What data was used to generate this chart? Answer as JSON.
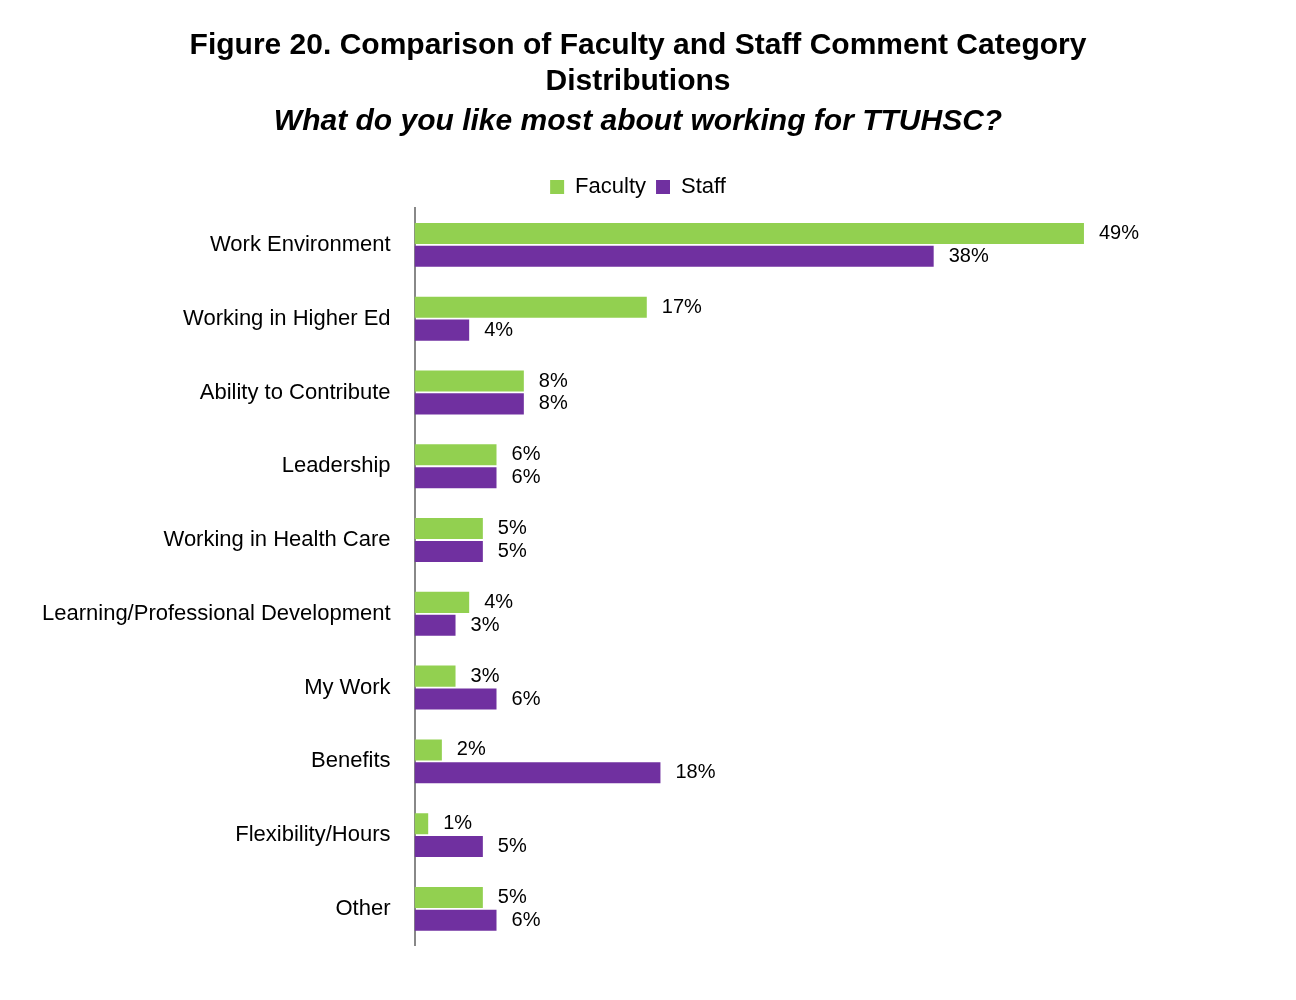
{
  "chart_data": {
    "type": "bar",
    "orientation": "horizontal",
    "title": "Figure 20. Comparison of Faculty and Staff Comment Category Distributions",
    "subtitle": "What do you like most about working for TTUHSC?",
    "categories": [
      "Work Environment",
      "Working in Higher Ed",
      "Ability to Contribute",
      "Leadership",
      "Working in Health Care",
      "Learning/Professional Development",
      "My Work",
      "Benefits",
      "Flexibility/Hours",
      "Other"
    ],
    "series": [
      {
        "name": "Faculty",
        "color": "#92d050",
        "values": [
          49,
          17,
          8,
          6,
          5,
          4,
          3,
          2,
          1,
          5
        ],
        "value_labels": [
          "49%",
          "17%",
          "8%",
          "6%",
          "5%",
          "4%",
          "3%",
          "2%",
          "1%",
          "5%"
        ]
      },
      {
        "name": "Staff",
        "color": "#7030a0",
        "values": [
          38,
          4,
          8,
          6,
          5,
          3,
          6,
          18,
          5,
          6
        ],
        "value_labels": [
          "38%",
          "4%",
          "8%",
          "6%",
          "5%",
          "3%",
          "6%",
          "18%",
          "5%",
          "6%"
        ]
      }
    ],
    "legend": "top"
  }
}
